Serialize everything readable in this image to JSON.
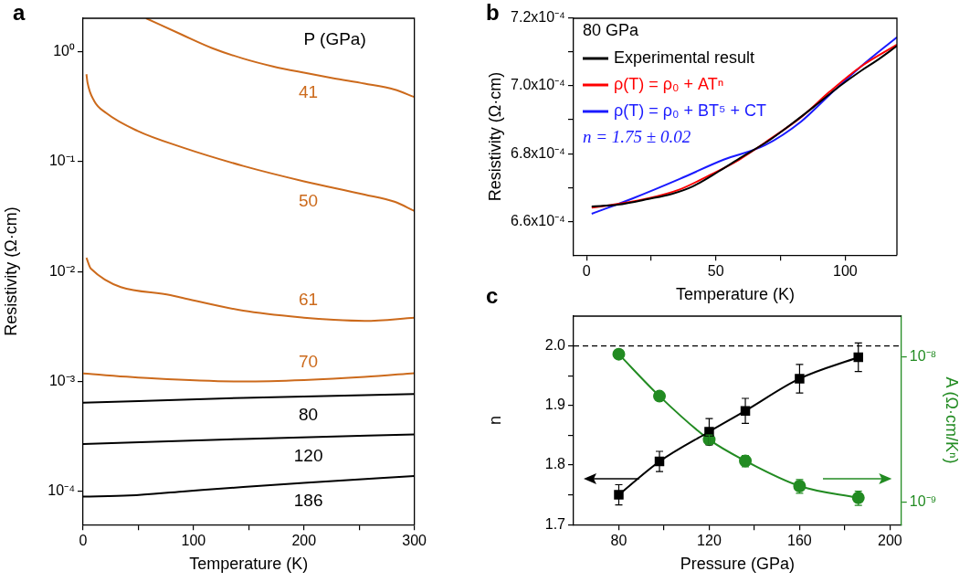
{
  "chart_data": [
    {
      "type": "line",
      "title": "a",
      "xlabel": "Temperature (K)",
      "ylabel": "Resistivity (Ω·cm)",
      "legend_title": "P (GPa)",
      "log": "y",
      "grid": false,
      "xlim": [
        0,
        300
      ],
      "xticks": [
        0,
        {
          "value": 50,
          "label": null
        },
        100,
        {
          "value": 150,
          "label": null
        },
        200,
        {
          "value": 250,
          "label": null
        },
        300
      ],
      "ylim": [
        5e-05,
        2
      ],
      "yticks": [
        {
          "value": 0.0001,
          "label": "10⁻⁴"
        },
        {
          "value": 0.001,
          "label": "10⁻³"
        },
        {
          "value": 0.01,
          "label": "10⁻²"
        },
        {
          "value": 0.1,
          "label": "10⁻¹"
        },
        {
          "value": 1,
          "label": "10⁰"
        }
      ],
      "series": [
        {
          "name": "41",
          "color": "#cc6a1c",
          "x": [
            57,
            90,
            117,
            145,
            172,
            200,
            227,
            255,
            282,
            300
          ],
          "values": [
            2,
            1.41,
            1.07,
            0.86,
            0.73,
            0.64,
            0.57,
            0.51,
            0.45,
            0.385
          ]
        },
        {
          "name": "50",
          "color": "#cc6a1c",
          "x": [
            3,
            4,
            10,
            21,
            49,
            90,
            145,
            200,
            255,
            282,
            300
          ],
          "values": [
            0.62,
            0.52,
            0.355,
            0.275,
            0.19,
            0.134,
            0.091,
            0.066,
            0.05,
            0.043,
            0.0355
          ]
        },
        {
          "name": "61",
          "color": "#cc6a1c",
          "x": [
            3,
            7,
            79,
            90,
            145,
            200,
            227,
            255,
            300
          ],
          "values": [
            0.0133,
            0.0106,
            0.0061,
            0.00575,
            0.0044,
            0.0038,
            0.00363,
            0.00355,
            0.0038
          ]
        },
        {
          "name": "70",
          "color": "#cc6a1c",
          "x": [
            0,
            62,
            145,
            200,
            255,
            300
          ],
          "values": [
            0.00118,
            0.00107,
            0.001,
            0.00103,
            0.0011,
            0.00119
          ]
        },
        {
          "name": "80",
          "color": "#000000",
          "x": [
            0,
            145,
            300
          ],
          "values": [
            0.00064,
            0.00071,
            0.00077
          ]
        },
        {
          "name": "120",
          "color": "#000000",
          "x": [
            0,
            145,
            300
          ],
          "values": [
            0.00027,
            0.0003,
            0.00033
          ]
        },
        {
          "name": "186",
          "color": "#000000",
          "x": [
            0,
            42,
            90,
            145,
            200,
            300
          ],
          "values": [
            9e-05,
            9.2e-05,
            0.0001,
            0.00011,
            0.00012,
            0.000138
          ]
        }
      ]
    },
    {
      "type": "line",
      "title": "b",
      "xlabel": "Temperature (K)",
      "ylabel": "Resistivity (Ω·cm)",
      "legend": "top left",
      "legend_title": "80 GPa",
      "annotations": [
        "n = 1.75 ± 0.02"
      ],
      "grid": false,
      "xlim": [
        -5,
        120
      ],
      "xticks": [
        0,
        {
          "value": 25,
          "label": null
        },
        50,
        {
          "value": 75,
          "label": null
        },
        100
      ],
      "ylim": [
        0.00065,
        0.00072
      ],
      "yticks": [
        {
          "value": 0.00066,
          "label": "6.6x10⁻⁴"
        },
        {
          "value": 0.00067,
          "label": null
        },
        {
          "value": 0.00068,
          "label": "6.8x10⁻⁴"
        },
        {
          "value": 0.00069,
          "label": null
        },
        {
          "value": 0.0007,
          "label": "7.0x10⁻⁴"
        },
        {
          "value": 0.00071,
          "label": null
        },
        {
          "value": 0.00072,
          "label": "7.2x10⁻⁴"
        }
      ],
      "series": [
        {
          "name": "Experimental result",
          "color": "#000000",
          "x": [
            2,
            12,
            24,
            33,
            41,
            51,
            60,
            70,
            79,
            88,
            98,
            106,
            112,
            120
          ],
          "values": [
            0.0006644,
            0.0006649,
            0.0006666,
            0.0006681,
            0.0006703,
            0.0006747,
            0.000679,
            0.0006836,
            0.0006886,
            0.0006939,
            0.0007,
            0.0007044,
            0.0007074,
            0.0007118
          ]
        },
        {
          "name": "ρ(T) = ρ₀ + ATⁿ",
          "color": "#ff0000",
          "x": [
            2,
            12,
            24,
            36,
            47,
            59,
            71,
            83,
            94,
            106,
            120
          ],
          "values": [
            0.000664,
            0.0006651,
            0.0006668,
            0.0006694,
            0.0006734,
            0.0006782,
            0.0006843,
            0.0006908,
            0.0006983,
            0.0007057,
            0.0007122
          ]
        },
        {
          "name": "ρ(T) = ρ₀ + BT⁵ + CT",
          "color": "#1a1aff",
          "x": [
            2,
            18,
            36,
            53,
            69,
            83,
            94,
            106,
            120
          ],
          "values": [
            0.0006622,
            0.0006668,
            0.0006725,
            0.0006782,
            0.0006825,
            0.0006895,
            0.0006974,
            0.0007057,
            0.0007144
          ]
        }
      ]
    },
    {
      "type": "line",
      "title": "c",
      "xlabel": "Pressure (GPa)",
      "ylabel": "n",
      "y2label": "A (Ω·cm/Kⁿ)",
      "log": "y2",
      "grid": false,
      "x": [
        80,
        98,
        120,
        136,
        160,
        186
      ],
      "xlim": [
        60,
        205
      ],
      "xticks": [
        80,
        {
          "value": 100,
          "label": null
        },
        120,
        {
          "value": 140,
          "label": null
        },
        160,
        {
          "value": 180,
          "label": null
        },
        200
      ],
      "ylim": [
        1.7,
        2.05
      ],
      "yticks": [
        1.7,
        {
          "value": 1.75,
          "label": null
        },
        1.8,
        {
          "value": 1.85,
          "label": null
        },
        1.9,
        {
          "value": 1.95,
          "label": null
        },
        {
          "value": 2,
          "label": "2.0"
        }
      ],
      "y2lim": [
        7e-10,
        1.9e-08
      ],
      "y2ticks": [
        {
          "value": 1e-09,
          "label": "10⁻⁹"
        },
        {
          "value": 1e-08,
          "label": "10⁻⁸"
        }
      ],
      "ref_lines": [
        {
          "axis": "y",
          "value": 2,
          "color": "#000000",
          "line_style": "dashed"
        }
      ],
      "series": [
        {
          "color": "#000000",
          "marker": "square",
          "values": [
            1.75,
            1.806,
            1.856,
            1.891,
            1.945,
            1.981
          ],
          "errors": [
            0.017,
            0.017,
            0.022,
            0.021,
            0.024,
            0.024
          ]
        },
        {
          "color": "#228b22",
          "marker": "circle",
          "axis": "y2",
          "values": [
            1.04e-08,
            5.35e-09,
            2.69e-09,
            1.92e-09,
            1.29e-09,
            1.07e-09
          ],
          "errors": [
            null,
            null,
            2e-10,
            1.7e-10,
            1.4e-10,
            1.2e-10
          ]
        }
      ]
    }
  ]
}
